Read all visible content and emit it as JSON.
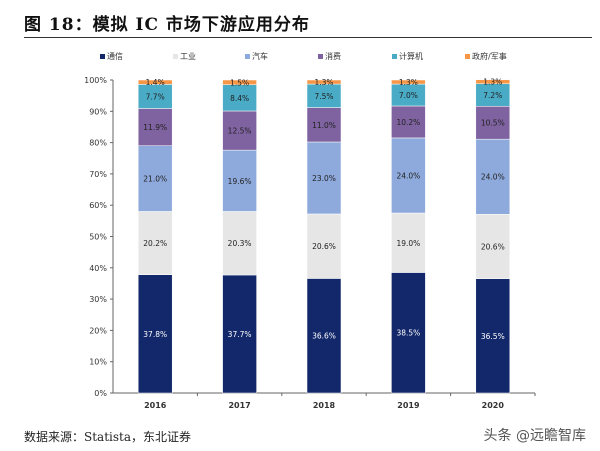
{
  "header": {
    "title": "图 18：模拟 IC 市场下游应用分布"
  },
  "footer": {
    "source": "数据来源：Statista，东北证券",
    "watermark": "头条 @远瞻智库"
  },
  "chart_data": {
    "type": "bar",
    "stacked": true,
    "title": "",
    "xlabel": "",
    "ylabel": "",
    "ylim": [
      0,
      100
    ],
    "yticks": [
      "0%",
      "10%",
      "20%",
      "30%",
      "40%",
      "50%",
      "60%",
      "70%",
      "80%",
      "90%",
      "100%"
    ],
    "categories": [
      "2016",
      "2017",
      "2018",
      "2019",
      "2020"
    ],
    "legend_position": "top",
    "grid": false,
    "series": [
      {
        "name": "通信",
        "color": "#13286b",
        "label_color": "#ffffff",
        "values": [
          37.8,
          37.7,
          36.6,
          38.5,
          36.5
        ]
      },
      {
        "name": "工业",
        "color": "#e6e6e6",
        "label_color": "#222222",
        "values": [
          20.2,
          20.3,
          20.6,
          19.0,
          20.6
        ]
      },
      {
        "name": "汽车",
        "color": "#8eaadc",
        "label_color": "#222222",
        "values": [
          21.0,
          19.6,
          23.0,
          24.0,
          24.0
        ]
      },
      {
        "name": "消费",
        "color": "#7f62a0",
        "label_color": "#222222",
        "values": [
          11.9,
          12.5,
          11.0,
          10.2,
          10.5
        ]
      },
      {
        "name": "计算机",
        "color": "#4aabc6",
        "label_color": "#222222",
        "values": [
          7.7,
          8.4,
          7.5,
          7.0,
          7.2
        ]
      },
      {
        "name": "政府/军事",
        "color": "#f79646",
        "label_color": "#222222",
        "values": [
          1.4,
          1.5,
          1.3,
          1.3,
          1.3
        ]
      }
    ]
  }
}
